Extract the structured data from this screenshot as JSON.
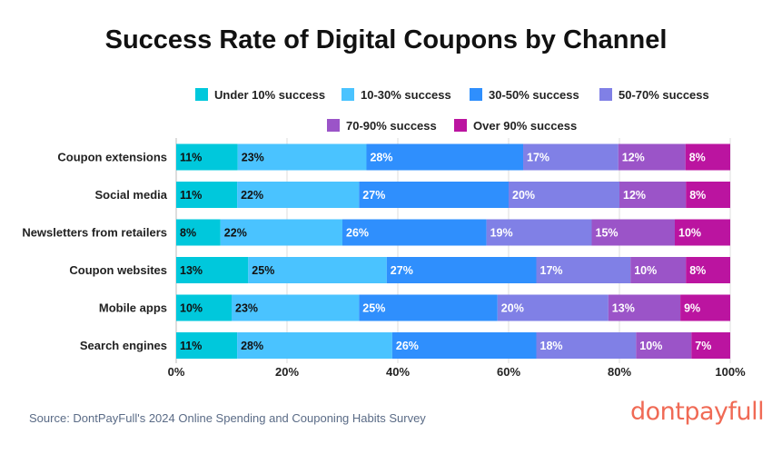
{
  "chart_data": {
    "type": "bar",
    "orientation": "horizontal",
    "stacked": true,
    "title": "Success Rate of Digital Coupons by Channel",
    "categories": [
      "Coupon extensions",
      "Social media",
      "Newsletters from retailers",
      "Coupon websites",
      "Mobile apps",
      "Search engines"
    ],
    "series": [
      {
        "name": "Under 10% success",
        "color": "#00c8dc",
        "values": [
          11,
          11,
          8,
          13,
          10,
          11
        ]
      },
      {
        "name": "10-30% success",
        "color": "#4ac3ff",
        "values": [
          23,
          22,
          22,
          25,
          23,
          28
        ]
      },
      {
        "name": "30-50% success",
        "color": "#2f8ffd",
        "values": [
          28,
          27,
          26,
          27,
          25,
          26
        ]
      },
      {
        "name": "50-70% success",
        "color": "#8080e6",
        "values": [
          17,
          20,
          19,
          17,
          20,
          18
        ]
      },
      {
        "name": "70-90% success",
        "color": "#9b54c8",
        "values": [
          12,
          12,
          15,
          10,
          13,
          10
        ]
      },
      {
        "name": "Over 90% success",
        "color": "#bb14a0",
        "values": [
          8,
          8,
          10,
          8,
          9,
          7
        ]
      }
    ],
    "xticks": [
      "0%",
      "20%",
      "40%",
      "60%",
      "80%",
      "100%"
    ],
    "xlim": [
      0,
      100
    ],
    "grid": true,
    "legend": "top"
  },
  "source": "Source: DontPayFull's 2024 Online Spending and Couponing Habits Survey",
  "logo": "dontpayfull"
}
